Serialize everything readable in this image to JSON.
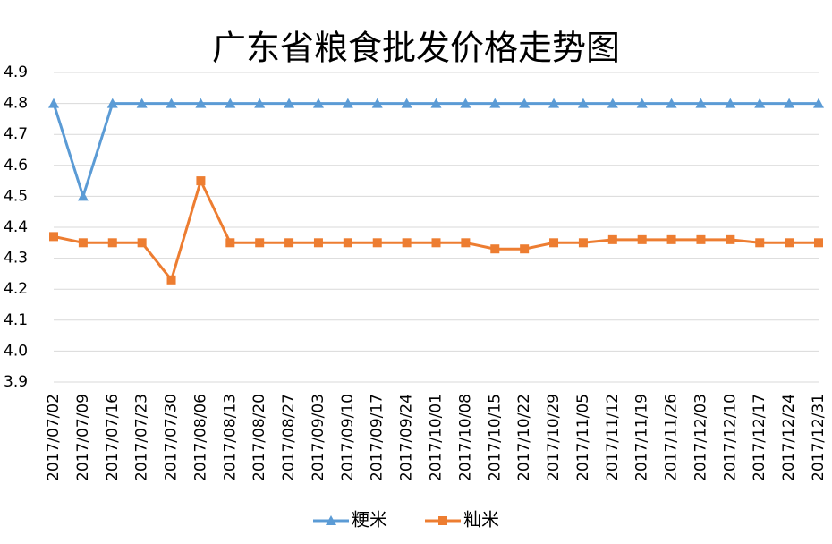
{
  "chart_data": {
    "type": "line",
    "title": "广东省粮食批发价格走势图",
    "categories": [
      "2017/07/02",
      "2017/07/09",
      "2017/07/16",
      "2017/07/23",
      "2017/07/30",
      "2017/08/06",
      "2017/08/13",
      "2017/08/20",
      "2017/08/27",
      "2017/09/03",
      "2017/09/10",
      "2017/09/17",
      "2017/09/24",
      "2017/10/01",
      "2017/10/08",
      "2017/10/15",
      "2017/10/22",
      "2017/10/29",
      "2017/11/05",
      "2017/11/12",
      "2017/11/19",
      "2017/11/26",
      "2017/12/03",
      "2017/12/10",
      "2017/12/17",
      "2017/12/24",
      "2017/12/31"
    ],
    "series": [
      {
        "name": "粳米",
        "color": "#5b9bd5",
        "marker": "triangle",
        "values": [
          4.8,
          4.5,
          4.8,
          4.8,
          4.8,
          4.8,
          4.8,
          4.8,
          4.8,
          4.8,
          4.8,
          4.8,
          4.8,
          4.8,
          4.8,
          4.8,
          4.8,
          4.8,
          4.8,
          4.8,
          4.8,
          4.8,
          4.8,
          4.8,
          4.8,
          4.8,
          4.8
        ]
      },
      {
        "name": "籼米",
        "color": "#ed7d31",
        "marker": "square",
        "values": [
          4.37,
          4.35,
          4.35,
          4.35,
          4.23,
          4.55,
          4.35,
          4.35,
          4.35,
          4.35,
          4.35,
          4.35,
          4.35,
          4.35,
          4.35,
          4.33,
          4.33,
          4.35,
          4.35,
          4.36,
          4.36,
          4.36,
          4.36,
          4.36,
          4.35,
          4.35,
          4.35
        ]
      }
    ],
    "ylim": [
      3.9,
      4.9
    ],
    "yticks": [
      {
        "value": 3.9,
        "label": "3.9"
      },
      {
        "value": 4,
        "label": "4.0"
      },
      4.1,
      4.2,
      4.3,
      4.4,
      4.5,
      4.6,
      4.7,
      4.8,
      4.9
    ],
    "grid": true,
    "legend": "bottom"
  }
}
